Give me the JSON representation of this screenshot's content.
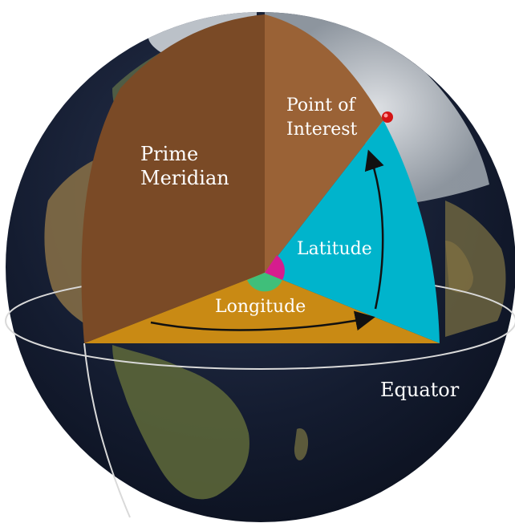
{
  "labels": {
    "prime_meridian_line1": "Prime",
    "prime_meridian_line2": "Meridian",
    "point_line1": "Point of",
    "point_line2": "Interest",
    "latitude": "Latitude",
    "longitude": "Longitude",
    "equator": "Equator"
  },
  "colors": {
    "space_sphere": "#121a2c",
    "prime_meridian_plane": "#7a4a26",
    "meridian_plane": "#9a6236",
    "latitude_plane": "#00b4cc",
    "equatorial_plane": "#c98a14",
    "latitude_angle": "#d61c8e",
    "longitude_angle": "#3fbf7a",
    "point_marker": "#d41414",
    "equator_line": "#d9d9d9",
    "arrow": "#111111"
  },
  "icons": {
    "point_marker": "red-dot-marker"
  }
}
